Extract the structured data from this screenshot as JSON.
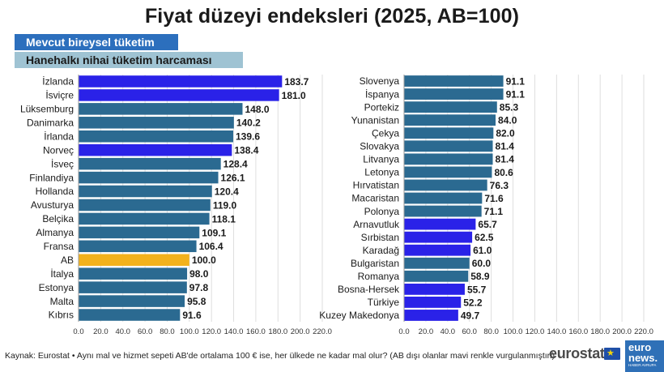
{
  "title": "Fiyat düzeyi endeksleri (2025, AB=100)",
  "legend": [
    {
      "label": "Mevcut bireysel tüketim",
      "color": "#2c6fbd"
    },
    {
      "label": "Hanehalkı nihai tüketim harcaması",
      "color": "#9fc3d3"
    }
  ],
  "colors": {
    "bar_default": "#2b6a91",
    "bar_highlight": "#2a22e8",
    "bar_eu": "#f3b21c",
    "grid": "#dedede"
  },
  "footer": {
    "source": "Kaynak: Eurostat • Aynı mal ve hizmet sepeti AB'de ortalama 100 € ise, her ülkede ne kadar mal olur? (AB dışı olanlar mavi renkle vurgulanmıştır.)"
  },
  "logos": {
    "eurostat": "eurostat",
    "euronews_line1": "euro",
    "euronews_line2": "news.",
    "euronews_line3": "HABER AVRUPA"
  },
  "chart_data": [
    {
      "type": "bar",
      "orientation": "horizontal",
      "xlim": [
        0,
        220
      ],
      "xticks": [
        "0.0",
        "20.0",
        "40.0",
        "60.0",
        "80.0",
        "100.0",
        "120.0",
        "140.0",
        "160.0",
        "180.0",
        "200.0",
        "220.0"
      ],
      "grid": true,
      "categories": [
        "İzlanda",
        "İsviçre",
        "Lüksemburg",
        "Danimarka",
        "İrlanda",
        "Norveç",
        "İsveç",
        "Finlandiya",
        "Hollanda",
        "Avusturya",
        "Belçika",
        "Almanya",
        "Fransa",
        "AB",
        "İtalya",
        "Estonya",
        "Malta",
        "Kıbrıs"
      ],
      "values": [
        183.7,
        181.0,
        148.0,
        140.2,
        139.6,
        138.4,
        128.4,
        126.1,
        120.4,
        119.0,
        118.1,
        109.1,
        106.4,
        100.0,
        98.0,
        97.8,
        95.8,
        91.6
      ],
      "labels": [
        "183.7",
        "181.0",
        "148.0",
        "140.2",
        "139.6",
        "138.4",
        "128.4",
        "126.1",
        "120.4",
        "119.0",
        "118.1",
        "109.1",
        "106.4",
        "100.0",
        "98.0",
        "97.8",
        "95.8",
        "91.6"
      ],
      "highlight": [
        "hl",
        "hl",
        "d",
        "d",
        "d",
        "hl",
        "d",
        "d",
        "d",
        "d",
        "d",
        "d",
        "d",
        "eu",
        "d",
        "d",
        "d",
        "d"
      ]
    },
    {
      "type": "bar",
      "orientation": "horizontal",
      "xlim": [
        0,
        220
      ],
      "xticks": [
        "0.0",
        "20.0",
        "40.0",
        "60.0",
        "80.0",
        "100.0",
        "120.0",
        "140.0",
        "160.0",
        "180.0",
        "200.0",
        "220.0"
      ],
      "grid": true,
      "categories": [
        "Slovenya",
        "İspanya",
        "Portekiz",
        "Yunanistan",
        "Çekya",
        "Slovakya",
        "Litvanya",
        "Letonya",
        "Hırvatistan",
        "Macaristan",
        "Polonya",
        "Arnavutluk",
        "Sırbistan",
        "Karadağ",
        "Bulgaristan",
        "Romanya",
        "Bosna-Hersek",
        "Türkiye",
        "Kuzey Makedonya"
      ],
      "values": [
        91.1,
        91.1,
        85.3,
        84.0,
        82.0,
        81.4,
        81.4,
        80.6,
        76.3,
        71.6,
        71.1,
        65.7,
        62.5,
        61.0,
        60.0,
        58.9,
        55.7,
        52.2,
        49.7
      ],
      "labels": [
        "91.1",
        "91.1",
        "85.3",
        "84.0",
        "82.0",
        "81.4",
        "81.4",
        "80.6",
        "76.3",
        "71.6",
        "71.1",
        "65.7",
        "62.5",
        "61.0",
        "60.0",
        "58.9",
        "55.7",
        "52.2",
        "49.7"
      ],
      "highlight": [
        "d",
        "d",
        "d",
        "d",
        "d",
        "d",
        "d",
        "d",
        "d",
        "d",
        "d",
        "hl",
        "hl",
        "hl",
        "d",
        "d",
        "hl",
        "hl",
        "hl"
      ]
    }
  ]
}
